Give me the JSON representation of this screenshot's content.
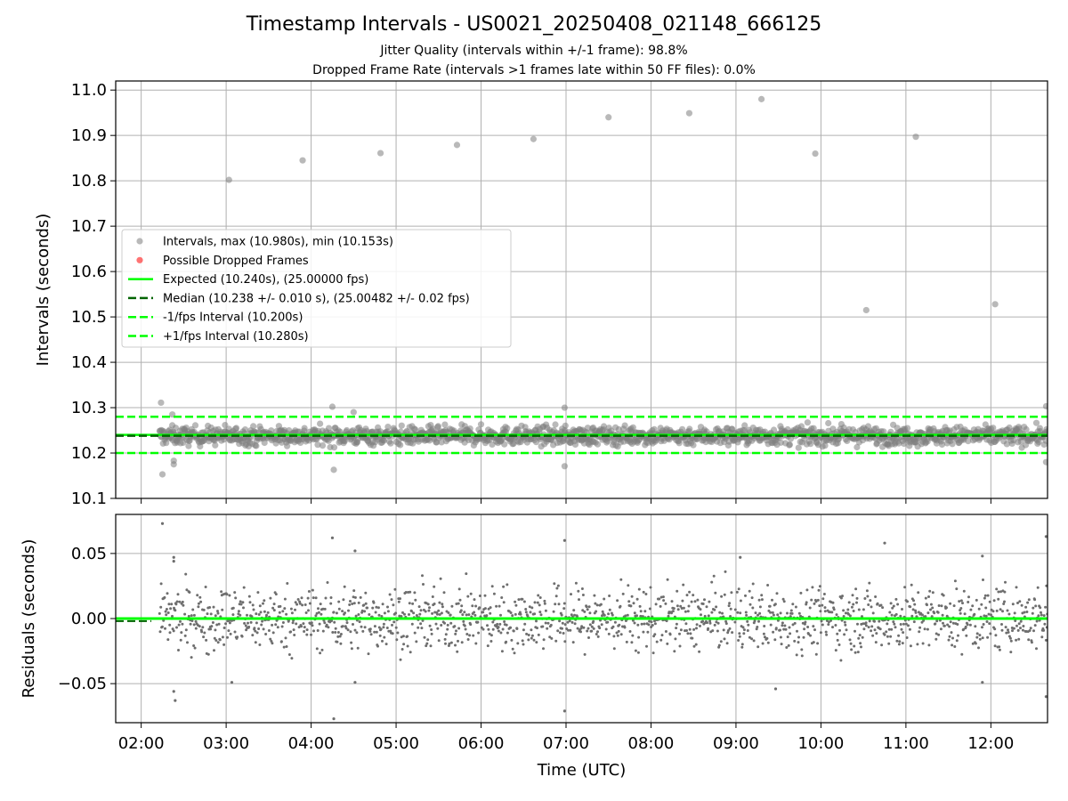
{
  "title": "Timestamp Intervals - US0021_20250408_021148_666125",
  "subtitle_lines": [
    "Jitter Quality (intervals within +/-1 frame): 98.8%",
    "Dropped Frame Rate (intervals >1 frames late within 50 FF files): 0.0%"
  ],
  "colors": {
    "points": "#808080",
    "dropped": "#ff0000",
    "expected": "#00ff00",
    "median": "#006400",
    "fps_band": "#00ff00",
    "grid": "#b0b0b0"
  },
  "chart_data": [
    {
      "type": "scatter",
      "name": "intervals",
      "ylabel": "Intervals (seconds)",
      "xlabel": "",
      "xlim": [
        "01:42",
        "12:40"
      ],
      "ylim": [
        10.1,
        11.02
      ],
      "yticks": [
        "10.1",
        "10.2",
        "10.3",
        "10.4",
        "10.5",
        "10.6",
        "10.7",
        "10.8",
        "10.9",
        "11.0"
      ],
      "grid": true,
      "legend_position": "center-left",
      "legend": [
        {
          "label": "Intervals, max (10.980s), min (10.153s)",
          "kind": "point-grey"
        },
        {
          "label": "Possible Dropped Frames",
          "kind": "point-red"
        },
        {
          "label": "Expected (10.240s), (25.00000 fps)",
          "kind": "line-expected"
        },
        {
          "label": "Median (10.238 +/- 0.010 s), (25.00482 +/- 0.02 fps)",
          "kind": "line-median"
        },
        {
          "label": "-1/fps Interval (10.200s)",
          "kind": "line-band"
        },
        {
          "label": "+1/fps Interval (10.280s)",
          "kind": "line-band"
        }
      ],
      "reference_lines": {
        "expected": 10.24,
        "median": 10.238,
        "minus_1_fps": 10.2,
        "plus_1_fps": 10.28
      },
      "band_summary": {
        "x_range": [
          "02:13",
          "12:40"
        ],
        "center": 10.238,
        "spread": 0.01
      },
      "outliers": [
        {
          "t": "02:14",
          "y": 10.311
        },
        {
          "t": "02:15",
          "y": 10.153
        },
        {
          "t": "02:22",
          "y": 10.285
        },
        {
          "t": "02:23",
          "y": 10.183
        },
        {
          "t": "02:23",
          "y": 10.175
        },
        {
          "t": "03:02",
          "y": 10.802
        },
        {
          "t": "03:54",
          "y": 10.845
        },
        {
          "t": "04:15",
          "y": 10.302
        },
        {
          "t": "04:16",
          "y": 10.163
        },
        {
          "t": "04:30",
          "y": 10.29
        },
        {
          "t": "04:49",
          "y": 10.861
        },
        {
          "t": "05:43",
          "y": 10.879
        },
        {
          "t": "06:37",
          "y": 10.892
        },
        {
          "t": "06:59",
          "y": 10.3
        },
        {
          "t": "06:59",
          "y": 10.171
        },
        {
          "t": "07:30",
          "y": 10.94
        },
        {
          "t": "08:27",
          "y": 10.949
        },
        {
          "t": "09:18",
          "y": 10.98
        },
        {
          "t": "09:56",
          "y": 10.86
        },
        {
          "t": "10:32",
          "y": 10.515
        },
        {
          "t": "11:07",
          "y": 10.897
        },
        {
          "t": "12:03",
          "y": 10.528
        },
        {
          "t": "12:39",
          "y": 10.303
        },
        {
          "t": "12:39",
          "y": 10.18
        }
      ]
    },
    {
      "type": "scatter",
      "name": "residuals",
      "ylabel": "Residuals (seconds)",
      "xlabel": "Time (UTC)",
      "xlim": [
        "01:42",
        "12:40"
      ],
      "ylim": [
        -0.08,
        0.08
      ],
      "yticks": [
        "−0.05",
        "0.00",
        "0.05"
      ],
      "xticks": [
        "02:00",
        "03:00",
        "04:00",
        "05:00",
        "06:00",
        "07:00",
        "08:00",
        "09:00",
        "10:00",
        "11:00",
        "12:00"
      ],
      "grid": true,
      "reference_lines": {
        "zero": 0.0,
        "median_offset": -0.002
      },
      "band_summary": {
        "x_range": [
          "02:13",
          "12:40"
        ],
        "center": 0.0,
        "spread": 0.012
      },
      "outliers": [
        {
          "t": "02:15",
          "y": 0.073
        },
        {
          "t": "02:23",
          "y": 0.047
        },
        {
          "t": "02:23",
          "y": 0.044
        },
        {
          "t": "02:23",
          "y": -0.056
        },
        {
          "t": "02:24",
          "y": -0.063
        },
        {
          "t": "03:04",
          "y": -0.049
        },
        {
          "t": "04:15",
          "y": 0.062
        },
        {
          "t": "04:16",
          "y": -0.077
        },
        {
          "t": "04:31",
          "y": 0.052
        },
        {
          "t": "04:31",
          "y": -0.049
        },
        {
          "t": "06:59",
          "y": 0.06
        },
        {
          "t": "06:59",
          "y": -0.071
        },
        {
          "t": "09:03",
          "y": 0.047
        },
        {
          "t": "09:28",
          "y": -0.054
        },
        {
          "t": "10:45",
          "y": 0.058
        },
        {
          "t": "11:54",
          "y": 0.048
        },
        {
          "t": "11:54",
          "y": -0.049
        },
        {
          "t": "12:39",
          "y": 0.063
        },
        {
          "t": "12:39",
          "y": -0.06
        }
      ]
    }
  ]
}
